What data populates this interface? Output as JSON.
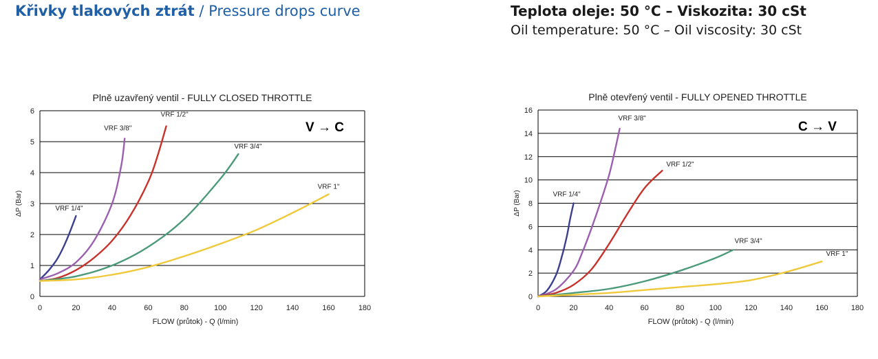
{
  "header": {
    "title_bold": "Křivky tlakových ztrát",
    "title_sep": " / ",
    "title_light": "Pressure drops curve",
    "conditions_bold": "Teplota oleje: 50 °C – Viskozita: 30 cSt",
    "conditions_light": "Oil temperature: 50 °C – Oil viscosity: 30 cSt"
  },
  "chart_data": [
    {
      "type": "line",
      "title": "Plně uzavřený ventil - FULLY CLOSED THROTTLE",
      "direction": "V → C",
      "xlabel": "FLOW (průtok) - Q (l/min)",
      "ylabel": "ΔP (Bar)",
      "xlim": [
        0,
        180
      ],
      "ylim": [
        0,
        6
      ],
      "xticks": [
        0,
        20,
        40,
        60,
        80,
        100,
        120,
        140,
        160,
        180
      ],
      "yticks": [
        0,
        1,
        2,
        3,
        4,
        5,
        6
      ],
      "grid": "horizontal",
      "series": [
        {
          "name": "VRF 1/4\"",
          "color": "#3b3f8f",
          "x": [
            0,
            5,
            10,
            15,
            20
          ],
          "y": [
            0.55,
            0.85,
            1.25,
            1.85,
            2.6
          ]
        },
        {
          "name": "VRF 3/8\"",
          "color": "#9b5fb0",
          "x": [
            0,
            10,
            20,
            30,
            40,
            45,
            47
          ],
          "y": [
            0.55,
            0.75,
            1.1,
            1.8,
            3.0,
            4.2,
            5.1
          ]
        },
        {
          "name": "VRF 1/2\"",
          "color": "#c8322b",
          "x": [
            0,
            10,
            20,
            30,
            40,
            50,
            60,
            65,
            70
          ],
          "y": [
            0.5,
            0.6,
            0.85,
            1.25,
            1.8,
            2.6,
            3.7,
            4.5,
            5.5
          ]
        },
        {
          "name": "VRF 3/4\"",
          "color": "#4b9a7a",
          "x": [
            0,
            20,
            40,
            60,
            80,
            100,
            110
          ],
          "y": [
            0.5,
            0.65,
            1.0,
            1.6,
            2.5,
            3.8,
            4.6
          ]
        },
        {
          "name": "VRF 1\"",
          "color": "#f0c93a",
          "x": [
            0,
            20,
            40,
            60,
            80,
            100,
            120,
            140,
            160
          ],
          "y": [
            0.5,
            0.55,
            0.7,
            0.95,
            1.3,
            1.7,
            2.15,
            2.7,
            3.3
          ]
        }
      ]
    },
    {
      "type": "line",
      "title": "Plně otevřený ventil - FULLY OPENED THROTTLE",
      "direction": "C → V",
      "xlabel": "FLOW (průtok) - Q (l/min)",
      "ylabel": "ΔP (Bar)",
      "xlim": [
        0,
        180
      ],
      "ylim": [
        0,
        16
      ],
      "xticks": [
        0,
        20,
        40,
        60,
        80,
        100,
        120,
        140,
        160,
        180
      ],
      "yticks": [
        0,
        2,
        4,
        6,
        8,
        10,
        12,
        14,
        16
      ],
      "grid": "horizontal",
      "series": [
        {
          "name": "VRF 1/4\"",
          "color": "#3b3f8f",
          "x": [
            0,
            5,
            10,
            13,
            16,
            18,
            20
          ],
          "y": [
            0.0,
            0.5,
            1.8,
            3.2,
            5.0,
            6.6,
            8.0
          ]
        },
        {
          "name": "VRF 3/8\"",
          "color": "#9b5fb0",
          "x": [
            0,
            10,
            20,
            25,
            30,
            35,
            40,
            43,
            46
          ],
          "y": [
            0.0,
            0.6,
            2.2,
            3.8,
            5.8,
            8.0,
            10.4,
            12.3,
            14.4
          ]
        },
        {
          "name": "VRF 1/2\"",
          "color": "#c8322b",
          "x": [
            0,
            10,
            20,
            30,
            40,
            50,
            60,
            70
          ],
          "y": [
            0.0,
            0.3,
            1.0,
            2.3,
            4.5,
            7.0,
            9.3,
            10.8
          ]
        },
        {
          "name": "VRF 3/4\"",
          "color": "#4b9a7a",
          "x": [
            0,
            20,
            40,
            60,
            80,
            100,
            110
          ],
          "y": [
            0.0,
            0.3,
            0.65,
            1.3,
            2.2,
            3.3,
            4.0
          ]
        },
        {
          "name": "VRF 1\"",
          "color": "#f0c93a",
          "x": [
            0,
            20,
            40,
            60,
            80,
            100,
            120,
            140,
            160
          ],
          "y": [
            0.0,
            0.15,
            0.3,
            0.55,
            0.8,
            1.05,
            1.4,
            2.1,
            3.0
          ]
        }
      ]
    }
  ]
}
